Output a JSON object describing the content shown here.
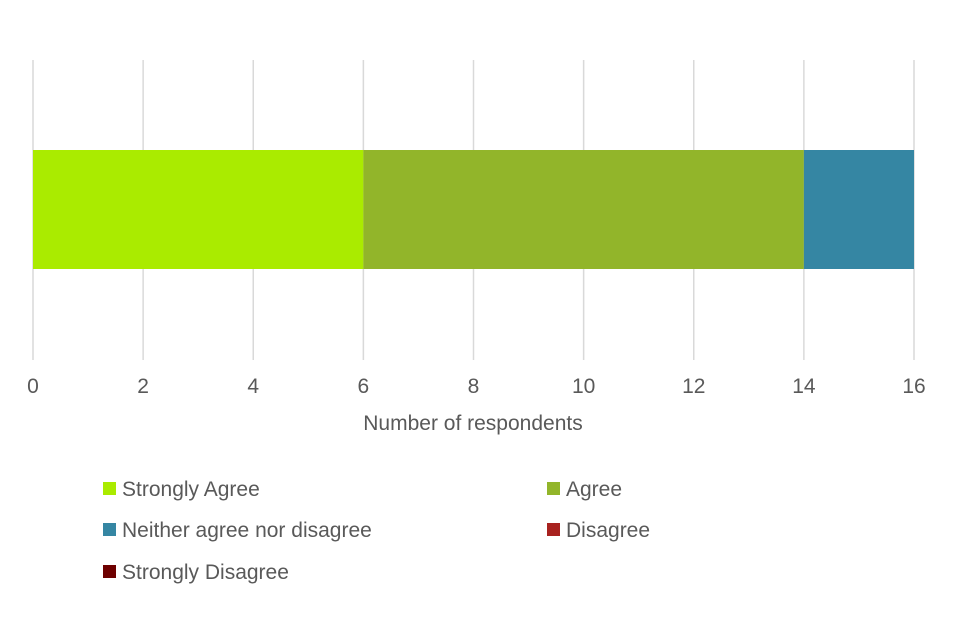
{
  "chart_data": {
    "type": "bar",
    "orientation": "horizontal",
    "stacked": true,
    "title": "",
    "categories": [
      ""
    ],
    "series": [
      {
        "name": "Strongly Agree",
        "values": [
          6
        ],
        "color": "#aaeb00"
      },
      {
        "name": "Agree",
        "values": [
          8
        ],
        "color": "#92b52a"
      },
      {
        "name": "Neither agree nor disagree",
        "values": [
          2
        ],
        "color": "#3586a3"
      },
      {
        "name": "Disagree",
        "values": [
          0
        ],
        "color": "#a8221f"
      },
      {
        "name": "Strongly Disagree",
        "values": [
          0
        ],
        "color": "#6e0000"
      }
    ],
    "xlabel": "Number of respondents",
    "ylabel": "",
    "xlim": [
      0,
      16
    ],
    "xticks": [
      0,
      2,
      4,
      6,
      8,
      10,
      12,
      14,
      16
    ],
    "grid": true,
    "legend_position": "bottom"
  }
}
